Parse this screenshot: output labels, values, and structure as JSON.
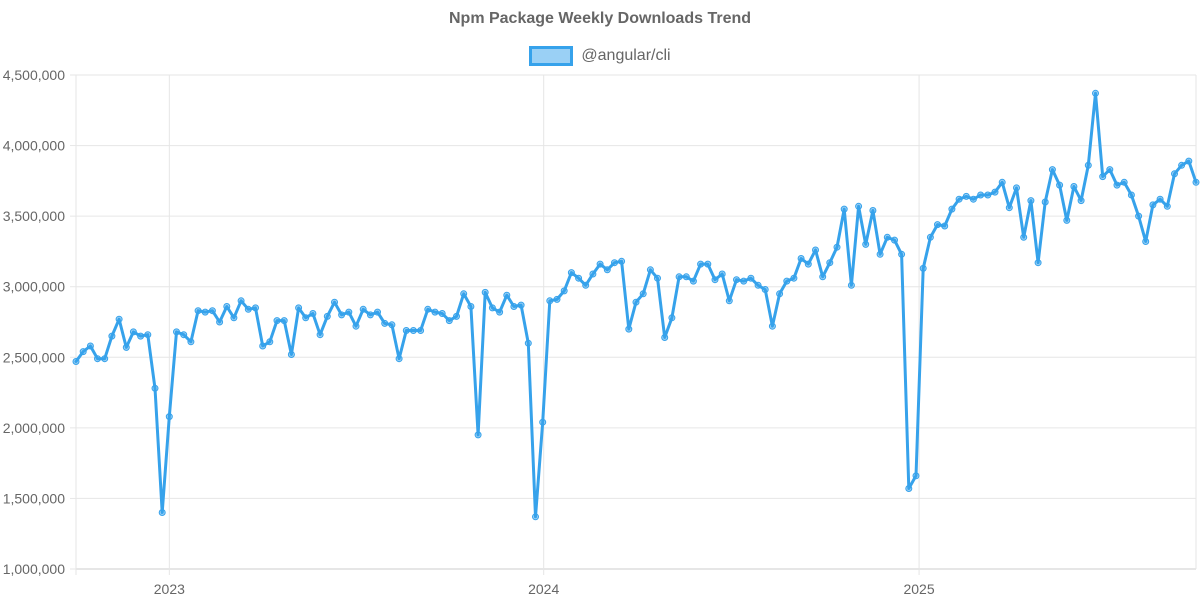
{
  "chart_data": {
    "type": "line",
    "title": "Npm Package Weekly Downloads Trend",
    "xlabel": "",
    "ylabel": "",
    "ylim": [
      1000000,
      4500000
    ],
    "xlim": [
      "2022-10-02",
      "2025-09-28"
    ],
    "y_ticks": [
      "1,000,000",
      "1,500,000",
      "2,000,000",
      "2,500,000",
      "3,000,000",
      "3,500,000",
      "4,000,000",
      "4,500,000"
    ],
    "y_tick_values": [
      1000000,
      1500000,
      2000000,
      2500000,
      3000000,
      3500000,
      4000000,
      4500000
    ],
    "x_ticks": [
      "2023",
      "2024",
      "2025"
    ],
    "x_tick_dates": [
      "2023-01-01",
      "2024-01-01",
      "2025-01-01"
    ],
    "grid": true,
    "legend_position": "top",
    "series": [
      {
        "name": "@angular/cli",
        "color": "#36a2eb",
        "points": [
          [
            "2022-10-02",
            2470000
          ],
          [
            "2022-10-09",
            2540000
          ],
          [
            "2022-10-16",
            2580000
          ],
          [
            "2022-10-23",
            2490000
          ],
          [
            "2022-10-30",
            2490000
          ],
          [
            "2022-11-06",
            2650000
          ],
          [
            "2022-11-13",
            2770000
          ],
          [
            "2022-11-20",
            2570000
          ],
          [
            "2022-11-27",
            2680000
          ],
          [
            "2022-12-04",
            2650000
          ],
          [
            "2022-12-11",
            2660000
          ],
          [
            "2022-12-18",
            2280000
          ],
          [
            "2022-12-25",
            1400000
          ],
          [
            "2023-01-01",
            2080000
          ],
          [
            "2023-01-08",
            2680000
          ],
          [
            "2023-01-15",
            2660000
          ],
          [
            "2023-01-22",
            2610000
          ],
          [
            "2023-01-29",
            2830000
          ],
          [
            "2023-02-05",
            2820000
          ],
          [
            "2023-02-12",
            2830000
          ],
          [
            "2023-02-19",
            2750000
          ],
          [
            "2023-02-26",
            2860000
          ],
          [
            "2023-03-05",
            2780000
          ],
          [
            "2023-03-12",
            2900000
          ],
          [
            "2023-03-19",
            2840000
          ],
          [
            "2023-03-26",
            2850000
          ],
          [
            "2023-04-02",
            2580000
          ],
          [
            "2023-04-09",
            2610000
          ],
          [
            "2023-04-16",
            2760000
          ],
          [
            "2023-04-23",
            2760000
          ],
          [
            "2023-04-30",
            2520000
          ],
          [
            "2023-05-07",
            2850000
          ],
          [
            "2023-05-14",
            2780000
          ],
          [
            "2023-05-21",
            2810000
          ],
          [
            "2023-05-28",
            2660000
          ],
          [
            "2023-06-04",
            2790000
          ],
          [
            "2023-06-11",
            2890000
          ],
          [
            "2023-06-18",
            2800000
          ],
          [
            "2023-06-25",
            2820000
          ],
          [
            "2023-07-02",
            2720000
          ],
          [
            "2023-07-09",
            2840000
          ],
          [
            "2023-07-16",
            2800000
          ],
          [
            "2023-07-23",
            2820000
          ],
          [
            "2023-07-30",
            2740000
          ],
          [
            "2023-08-06",
            2730000
          ],
          [
            "2023-08-13",
            2490000
          ],
          [
            "2023-08-20",
            2690000
          ],
          [
            "2023-08-27",
            2690000
          ],
          [
            "2023-09-03",
            2690000
          ],
          [
            "2023-09-10",
            2840000
          ],
          [
            "2023-09-17",
            2820000
          ],
          [
            "2023-09-24",
            2810000
          ],
          [
            "2023-10-01",
            2760000
          ],
          [
            "2023-10-08",
            2790000
          ],
          [
            "2023-10-15",
            2950000
          ],
          [
            "2023-10-22",
            2860000
          ],
          [
            "2023-10-29",
            1950000
          ],
          [
            "2023-11-05",
            2960000
          ],
          [
            "2023-11-12",
            2850000
          ],
          [
            "2023-11-19",
            2820000
          ],
          [
            "2023-11-26",
            2940000
          ],
          [
            "2023-12-03",
            2860000
          ],
          [
            "2023-12-10",
            2870000
          ],
          [
            "2023-12-17",
            2600000
          ],
          [
            "2023-12-24",
            1370000
          ],
          [
            "2023-12-31",
            2040000
          ],
          [
            "2024-01-07",
            2900000
          ],
          [
            "2024-01-14",
            2910000
          ],
          [
            "2024-01-21",
            2970000
          ],
          [
            "2024-01-28",
            3100000
          ],
          [
            "2024-02-04",
            3060000
          ],
          [
            "2024-02-11",
            3010000
          ],
          [
            "2024-02-18",
            3090000
          ],
          [
            "2024-02-25",
            3160000
          ],
          [
            "2024-03-03",
            3120000
          ],
          [
            "2024-03-10",
            3170000
          ],
          [
            "2024-03-17",
            3180000
          ],
          [
            "2024-03-24",
            2700000
          ],
          [
            "2024-03-31",
            2890000
          ],
          [
            "2024-04-07",
            2950000
          ],
          [
            "2024-04-14",
            3120000
          ],
          [
            "2024-04-21",
            3060000
          ],
          [
            "2024-04-28",
            2640000
          ],
          [
            "2024-05-05",
            2780000
          ],
          [
            "2024-05-12",
            3070000
          ],
          [
            "2024-05-19",
            3070000
          ],
          [
            "2024-05-26",
            3040000
          ],
          [
            "2024-06-02",
            3160000
          ],
          [
            "2024-06-09",
            3160000
          ],
          [
            "2024-06-16",
            3050000
          ],
          [
            "2024-06-23",
            3090000
          ],
          [
            "2024-06-30",
            2900000
          ],
          [
            "2024-07-07",
            3050000
          ],
          [
            "2024-07-14",
            3040000
          ],
          [
            "2024-07-21",
            3060000
          ],
          [
            "2024-07-28",
            3010000
          ],
          [
            "2024-08-04",
            2980000
          ],
          [
            "2024-08-11",
            2720000
          ],
          [
            "2024-08-18",
            2950000
          ],
          [
            "2024-08-25",
            3040000
          ],
          [
            "2024-09-01",
            3060000
          ],
          [
            "2024-09-08",
            3200000
          ],
          [
            "2024-09-15",
            3160000
          ],
          [
            "2024-09-22",
            3260000
          ],
          [
            "2024-09-29",
            3070000
          ],
          [
            "2024-10-06",
            3170000
          ],
          [
            "2024-10-13",
            3280000
          ],
          [
            "2024-10-20",
            3550000
          ],
          [
            "2024-10-27",
            3010000
          ],
          [
            "2024-11-03",
            3570000
          ],
          [
            "2024-11-10",
            3300000
          ],
          [
            "2024-11-17",
            3540000
          ],
          [
            "2024-11-24",
            3230000
          ],
          [
            "2024-12-01",
            3350000
          ],
          [
            "2024-12-08",
            3330000
          ],
          [
            "2024-12-15",
            3230000
          ],
          [
            "2024-12-22",
            1570000
          ],
          [
            "2024-12-29",
            1660000
          ],
          [
            "2025-01-05",
            3130000
          ],
          [
            "2025-01-12",
            3350000
          ],
          [
            "2025-01-19",
            3440000
          ],
          [
            "2025-01-26",
            3430000
          ],
          [
            "2025-02-02",
            3550000
          ],
          [
            "2025-02-09",
            3620000
          ],
          [
            "2025-02-16",
            3640000
          ],
          [
            "2025-02-23",
            3620000
          ],
          [
            "2025-03-02",
            3650000
          ],
          [
            "2025-03-09",
            3650000
          ],
          [
            "2025-03-16",
            3670000
          ],
          [
            "2025-03-23",
            3740000
          ],
          [
            "2025-03-30",
            3560000
          ],
          [
            "2025-04-06",
            3700000
          ],
          [
            "2025-04-13",
            3350000
          ],
          [
            "2025-04-20",
            3610000
          ],
          [
            "2025-04-27",
            3170000
          ],
          [
            "2025-05-04",
            3600000
          ],
          [
            "2025-05-11",
            3830000
          ],
          [
            "2025-05-18",
            3720000
          ],
          [
            "2025-05-25",
            3470000
          ],
          [
            "2025-06-01",
            3710000
          ],
          [
            "2025-06-08",
            3610000
          ],
          [
            "2025-06-15",
            3860000
          ],
          [
            "2025-06-22",
            4370000
          ],
          [
            "2025-06-29",
            3780000
          ],
          [
            "2025-07-06",
            3830000
          ],
          [
            "2025-07-13",
            3720000
          ],
          [
            "2025-07-20",
            3740000
          ],
          [
            "2025-07-27",
            3650000
          ],
          [
            "2025-08-03",
            3500000
          ],
          [
            "2025-08-10",
            3320000
          ],
          [
            "2025-08-17",
            3580000
          ],
          [
            "2025-08-24",
            3620000
          ],
          [
            "2025-08-31",
            3570000
          ],
          [
            "2025-09-07",
            3800000
          ],
          [
            "2025-09-14",
            3860000
          ],
          [
            "2025-09-21",
            3890000
          ],
          [
            "2025-09-28",
            3740000
          ]
        ]
      }
    ]
  }
}
